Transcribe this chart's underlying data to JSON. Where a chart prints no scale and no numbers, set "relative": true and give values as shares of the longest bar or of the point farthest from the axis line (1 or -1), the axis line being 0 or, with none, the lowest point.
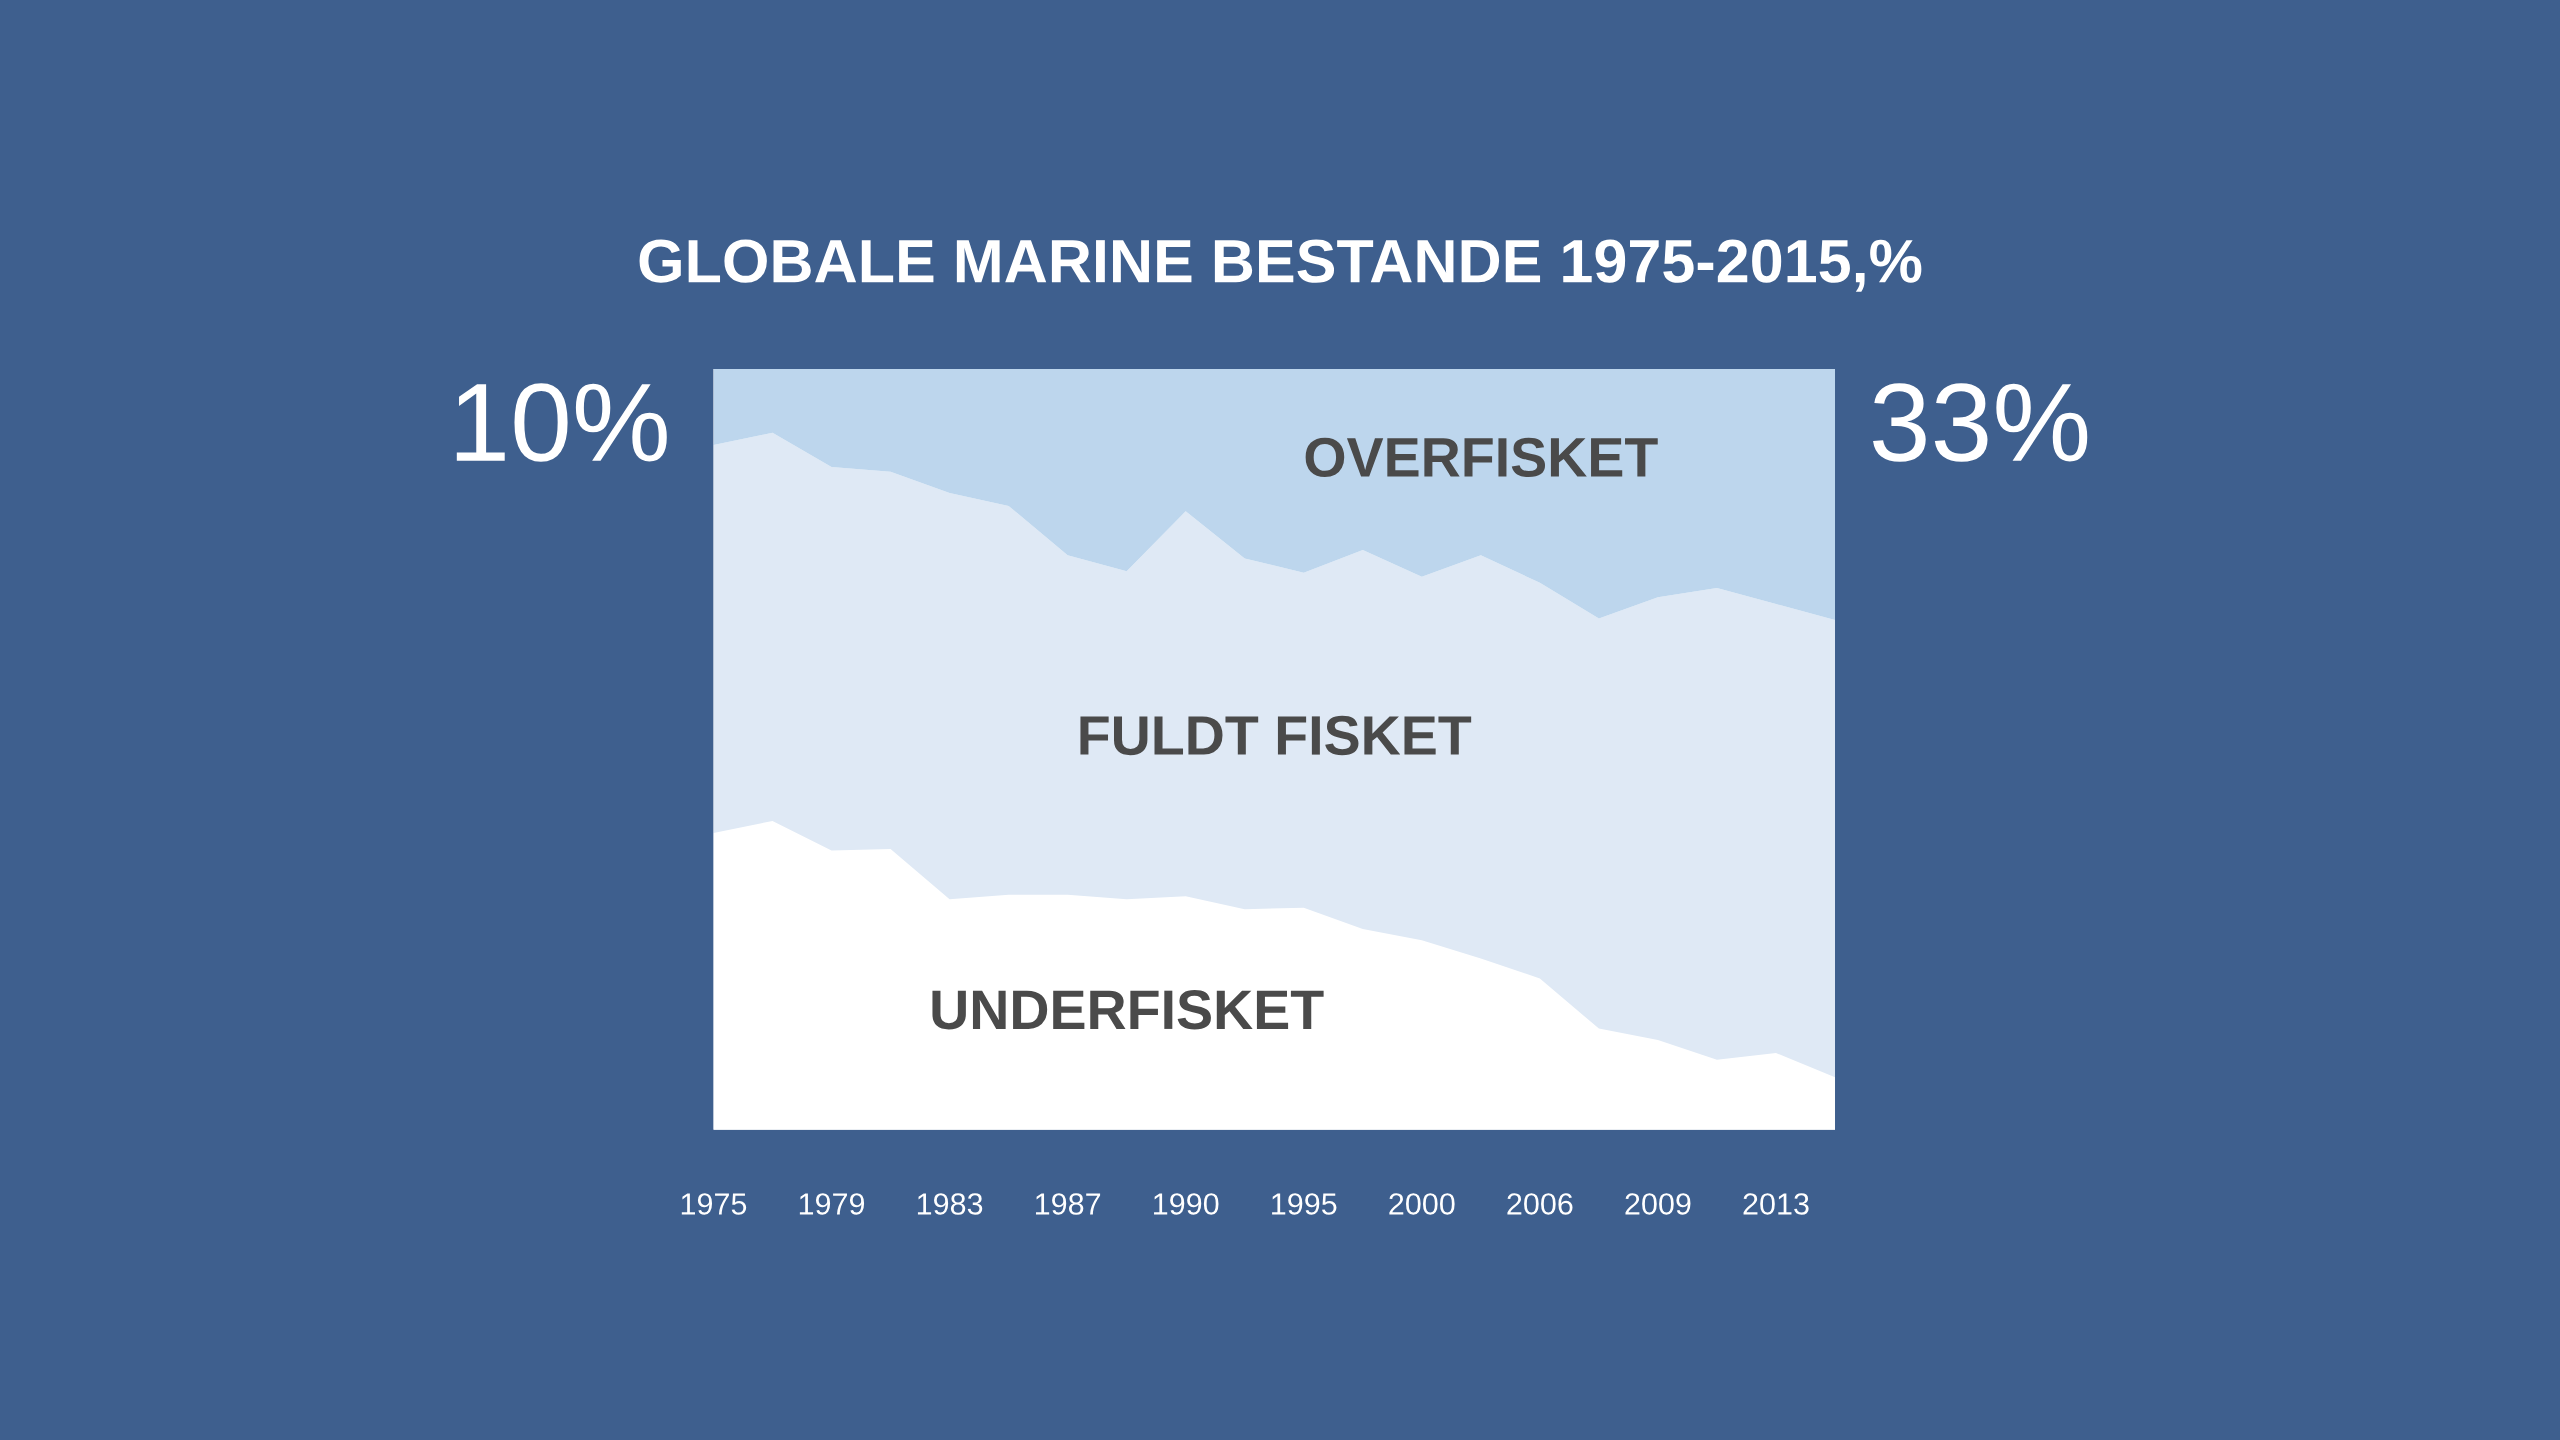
{
  "chart_data": {
    "type": "area",
    "title": "GLOBALE MARINE BESTANDE 1975-2015,%",
    "relative": true,
    "stacked": true,
    "categories": [
      "1975",
      null,
      "1979",
      null,
      "1983",
      null,
      "1987",
      null,
      "1990",
      null,
      "1995",
      null,
      "2000",
      null,
      "2006",
      null,
      "2009",
      null,
      "2013",
      null
    ],
    "series": [
      {
        "name": "UNDERFISKET",
        "color": "#ffffff",
        "values": [
          0.39,
          0.406,
          0.367,
          0.369,
          0.303,
          0.309,
          0.309,
          0.303,
          0.307,
          0.29,
          0.292,
          0.264,
          0.249,
          0.225,
          0.199,
          0.133,
          0.118,
          0.092,
          0.101,
          0.069
        ]
      },
      {
        "name": "FULDT FISKET",
        "color": "#dfe9f5",
        "values": [
          0.51,
          0.51,
          0.504,
          0.496,
          0.534,
          0.511,
          0.446,
          0.431,
          0.506,
          0.461,
          0.44,
          0.498,
          0.478,
          0.53,
          0.52,
          0.539,
          0.582,
          0.62,
          0.59,
          0.601
        ]
      },
      {
        "name": "OVERFISKET",
        "color": "#bdd6ed",
        "values": [
          0.1,
          0.084,
          0.129,
          0.135,
          0.163,
          0.18,
          0.245,
          0.266,
          0.187,
          0.249,
          0.268,
          0.238,
          0.273,
          0.245,
          0.281,
          0.328,
          0.3,
          0.288,
          0.309,
          0.33
        ]
      }
    ],
    "annotations": [
      "10%",
      "33%"
    ]
  }
}
